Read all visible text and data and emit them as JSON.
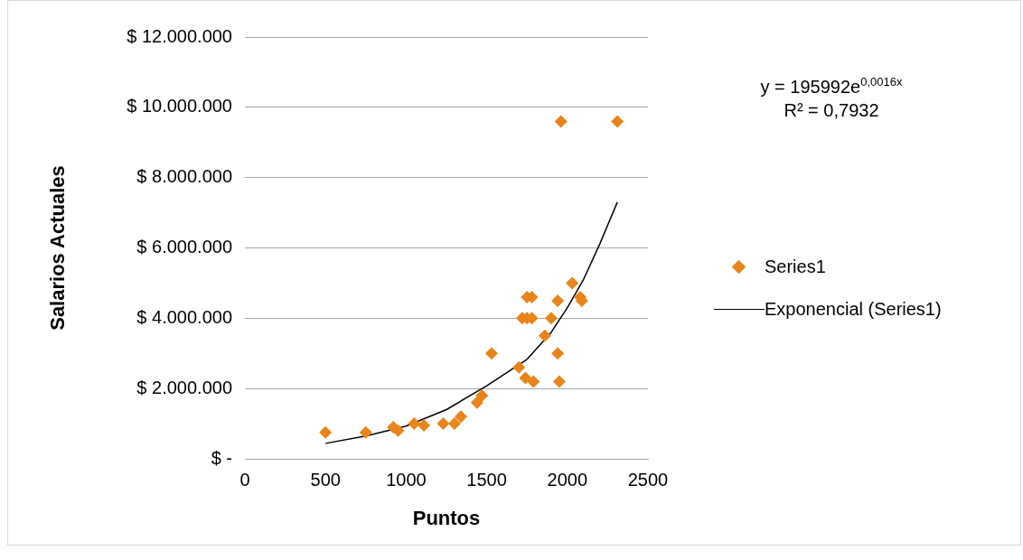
{
  "chart_data": {
    "type": "scatter",
    "xlabel": "Puntos",
    "ylabel": "Salarios Actuales",
    "annotations": [
      "y = 195992e$^{0,0016x}$",
      "R² = 0,7932"
    ],
    "xlim": [
      0,
      2500
    ],
    "xticks": [
      0,
      500,
      1000,
      1500,
      2000,
      2500
    ],
    "ylim": [
      0,
      12000000
    ],
    "yticks": [
      {
        "value": 0,
        "label": "$ -"
      },
      {
        "value": 2000000,
        "label": "$ 2.000.000"
      },
      {
        "value": 4000000,
        "label": "$ 4.000.000"
      },
      {
        "value": 6000000,
        "label": "$ 6.000.000"
      },
      {
        "value": 8000000,
        "label": "$ 8.000.000"
      },
      {
        "value": 10000000,
        "label": "$ 10.000.000"
      },
      {
        "value": 12000000,
        "label": "$ 12.000.000"
      }
    ],
    "grid": "y",
    "legend": "right",
    "marker": "diamond",
    "series": [
      {
        "name": "Series1",
        "type": "scatter",
        "color": "#e8841a",
        "x": [
          500,
          750,
          920,
          950,
          1050,
          1110,
          1230,
          1300,
          1340,
          1440,
          1470,
          1530,
          2030,
          1750,
          1780,
          1940,
          2080,
          2090,
          1720,
          1750,
          1780,
          1900,
          1860,
          1940,
          1700,
          1740,
          1790,
          1950,
          1960,
          2310
        ],
        "values": [
          750000,
          750000,
          900000,
          800000,
          1000000,
          950000,
          1000000,
          1000000,
          1200000,
          1600000,
          1800000,
          3000000,
          5000000,
          4600000,
          4600000,
          4500000,
          4600000,
          4500000,
          4000000,
          4000000,
          4000000,
          4000000,
          3500000,
          3000000,
          2600000,
          2300000,
          2200000,
          2200000,
          9600000,
          9600000
        ]
      },
      {
        "name": "Exponencial (Series1)",
        "type": "line",
        "color": "#000000",
        "marker": "none",
        "x": [
          500,
          750,
          1000,
          1250,
          1500,
          1750,
          1900,
          2000,
          2100,
          2200,
          2310
        ],
        "values": [
          440000,
          650000,
          930000,
          1400000,
          2080000,
          2830000,
          3600000,
          4300000,
          5100000,
          6100000,
          7300000
        ]
      }
    ]
  }
}
